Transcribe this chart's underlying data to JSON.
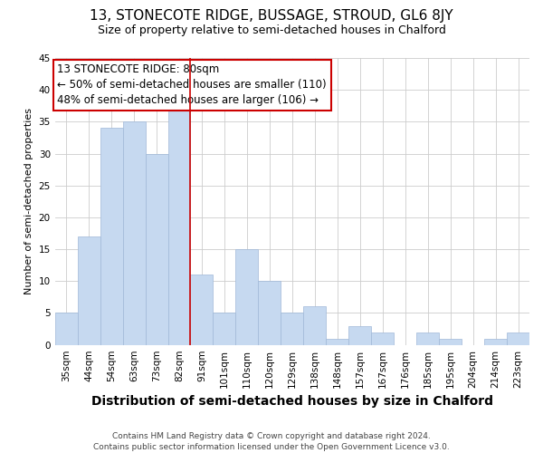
{
  "title": "13, STONECOTE RIDGE, BUSSAGE, STROUD, GL6 8JY",
  "subtitle": "Size of property relative to semi-detached houses in Chalford",
  "xlabel": "Distribution of semi-detached houses by size in Chalford",
  "ylabel": "Number of semi-detached properties",
  "bar_labels": [
    "35sqm",
    "44sqm",
    "54sqm",
    "63sqm",
    "73sqm",
    "82sqm",
    "91sqm",
    "101sqm",
    "110sqm",
    "120sqm",
    "129sqm",
    "138sqm",
    "148sqm",
    "157sqm",
    "167sqm",
    "176sqm",
    "185sqm",
    "195sqm",
    "204sqm",
    "214sqm",
    "223sqm"
  ],
  "bar_values": [
    5,
    17,
    34,
    35,
    30,
    37,
    11,
    5,
    15,
    10,
    5,
    6,
    1,
    3,
    2,
    0,
    2,
    1,
    0,
    1,
    2
  ],
  "bar_color": "#c6d9f0",
  "highlight_bar_index": 5,
  "highlight_line_color": "#cc0000",
  "ylim": [
    0,
    45
  ],
  "yticks": [
    0,
    5,
    10,
    15,
    20,
    25,
    30,
    35,
    40,
    45
  ],
  "annotation_title": "13 STONECOTE RIDGE: 80sqm",
  "annotation_line1": "← 50% of semi-detached houses are smaller (110)",
  "annotation_line2": "48% of semi-detached houses are larger (106) →",
  "footer_line1": "Contains HM Land Registry data © Crown copyright and database right 2024.",
  "footer_line2": "Contains public sector information licensed under the Open Government Licence v3.0.",
  "grid_color": "#cccccc",
  "background_color": "#ffffff",
  "title_fontsize": 11,
  "subtitle_fontsize": 9,
  "xlabel_fontsize": 10,
  "ylabel_fontsize": 8,
  "tick_fontsize": 7.5,
  "footer_fontsize": 6.5,
  "annotation_fontsize": 8.5
}
